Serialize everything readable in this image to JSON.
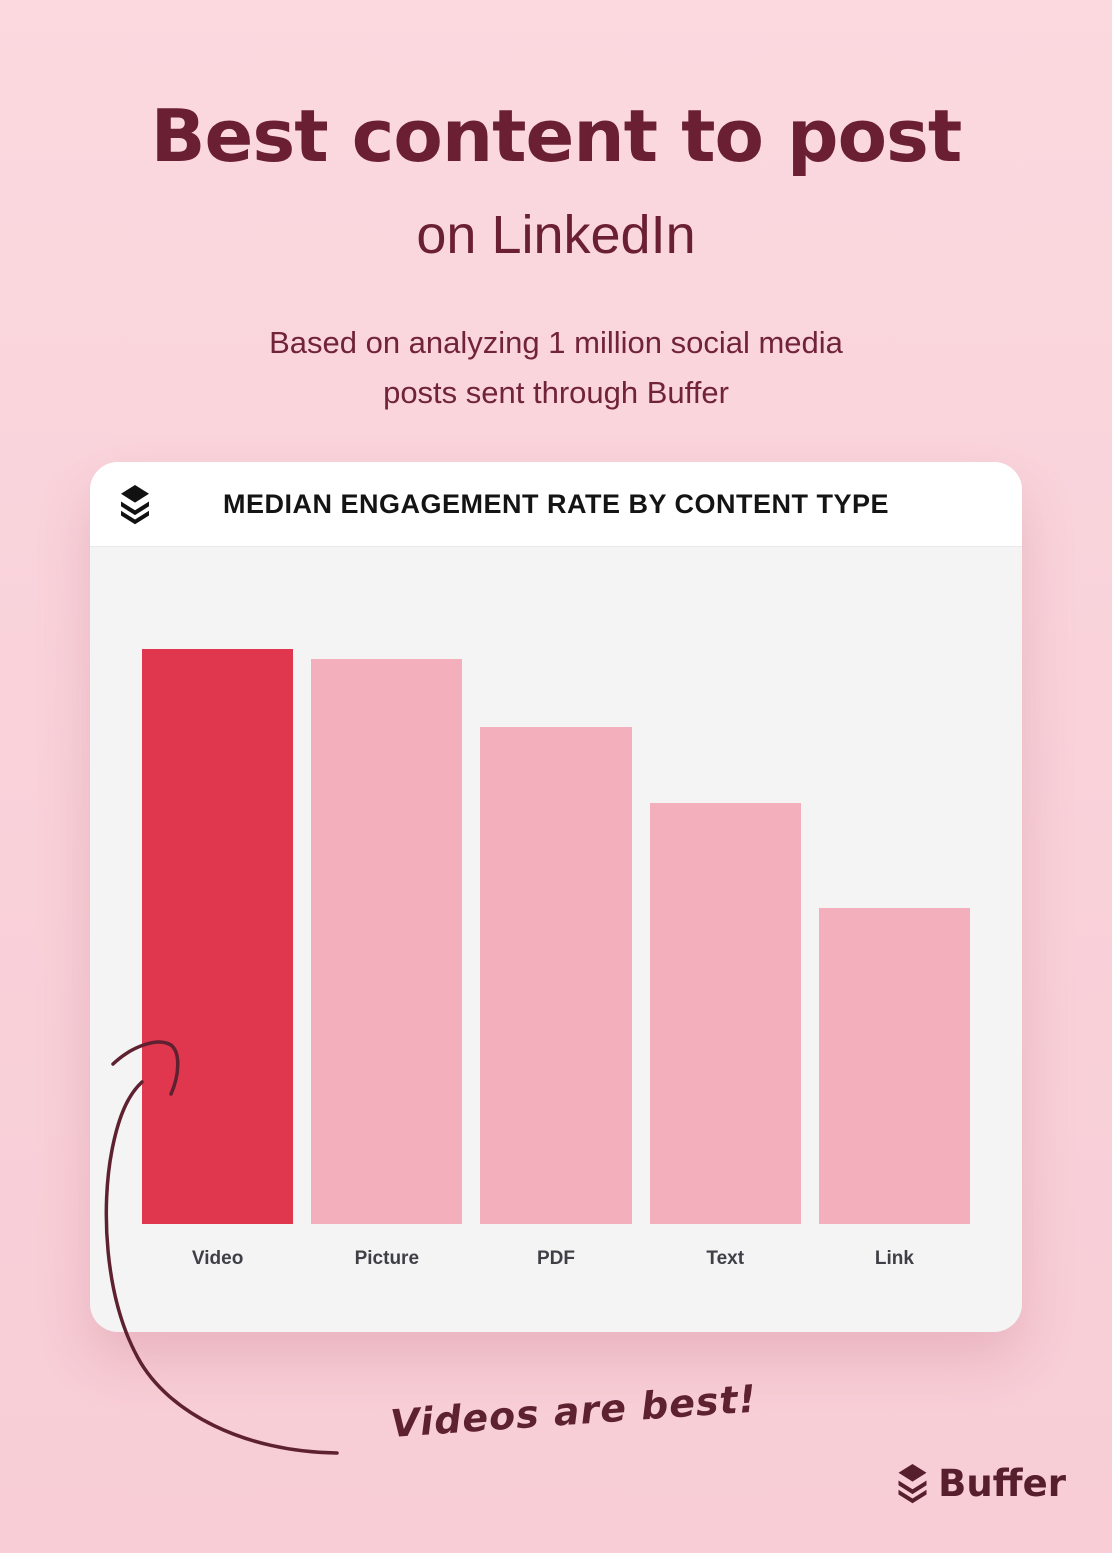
{
  "page": {
    "title": "Best content to post",
    "subtitle": "on LinkedIn",
    "description_lines": [
      "Based on analyzing 1 million social media",
      "posts sent through Buffer"
    ]
  },
  "card": {
    "header": {
      "icon": "buffer-logo-icon",
      "title": "MEDIAN ENGAGEMENT RATE BY CONTENT TYPE"
    }
  },
  "chart_data": {
    "type": "bar",
    "title": "MEDIAN ENGAGEMENT RATE BY CONTENT TYPE",
    "categories": [
      "Video",
      "Picture",
      "PDF",
      "Text",
      "Link"
    ],
    "values_relative_to_max": [
      1.0,
      0.98,
      0.86,
      0.73,
      0.55
    ],
    "bar_height_fraction_of_plot": [
      0.849,
      0.835,
      0.734,
      0.622,
      0.467
    ],
    "note": "No numeric axis, gridlines or data labels shown; values are relative bar heights",
    "highlight_index": 0,
    "highlight_category": "Video",
    "colors": {
      "highlight": "#e0364e",
      "default": "#f3afbb"
    },
    "xlabel": "",
    "ylabel": "",
    "grid": false,
    "legend": null,
    "plot_background": "#f5f4f5"
  },
  "annotation": {
    "text": "Videos are best!",
    "arrow_color": "#5e2130"
  },
  "footer": {
    "brand": "Buffer"
  },
  "colors": {
    "page_background": "#f9d2da",
    "title_text": "#6b1f33",
    "card_header_background": "#ffffff",
    "card_body_background": "#f5f4f5",
    "bar_label_text": "#3f4045",
    "brand_text": "#571f2e"
  }
}
